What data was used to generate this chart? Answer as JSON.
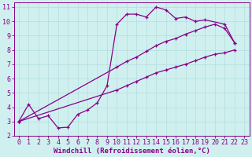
{
  "xlabel": "Windchill (Refroidissement éolien,°C)",
  "background_color": "#d0f0f0",
  "line_color": "#880088",
  "xlim": [
    -0.5,
    23.5
  ],
  "ylim": [
    2,
    11.3
  ],
  "xticks": [
    0,
    1,
    2,
    3,
    4,
    5,
    6,
    7,
    8,
    9,
    10,
    11,
    12,
    13,
    14,
    15,
    16,
    17,
    18,
    19,
    20,
    21,
    22,
    23
  ],
  "yticks": [
    2,
    3,
    4,
    5,
    6,
    7,
    8,
    9,
    10,
    11
  ],
  "line1_x": [
    0,
    1,
    2,
    3,
    4,
    5,
    6,
    7,
    8,
    9,
    10,
    11,
    12,
    13,
    14,
    15,
    16,
    17,
    18,
    19,
    21,
    22
  ],
  "line1_y": [
    3.0,
    4.2,
    3.2,
    3.4,
    2.55,
    2.6,
    3.5,
    3.8,
    4.3,
    5.5,
    9.8,
    10.5,
    10.5,
    10.3,
    11.0,
    10.8,
    10.2,
    10.3,
    10.0,
    10.1,
    9.8,
    8.5
  ],
  "line2_x": [
    0,
    10,
    11,
    12,
    13,
    14,
    15,
    16,
    17,
    18,
    19,
    20,
    21,
    22
  ],
  "line2_y": [
    3.0,
    6.8,
    7.2,
    7.5,
    7.9,
    8.3,
    8.6,
    8.8,
    9.1,
    9.35,
    9.6,
    9.8,
    9.5,
    8.5
  ],
  "line3_x": [
    0,
    10,
    11,
    12,
    13,
    14,
    15,
    16,
    17,
    18,
    19,
    20,
    21,
    22
  ],
  "line3_y": [
    3.0,
    5.2,
    5.5,
    5.8,
    6.1,
    6.4,
    6.6,
    6.8,
    7.0,
    7.25,
    7.5,
    7.7,
    7.8,
    8.0
  ],
  "grid_color": "#b8e0e0",
  "xlabel_fontsize": 6.5,
  "tick_fontsize": 6
}
